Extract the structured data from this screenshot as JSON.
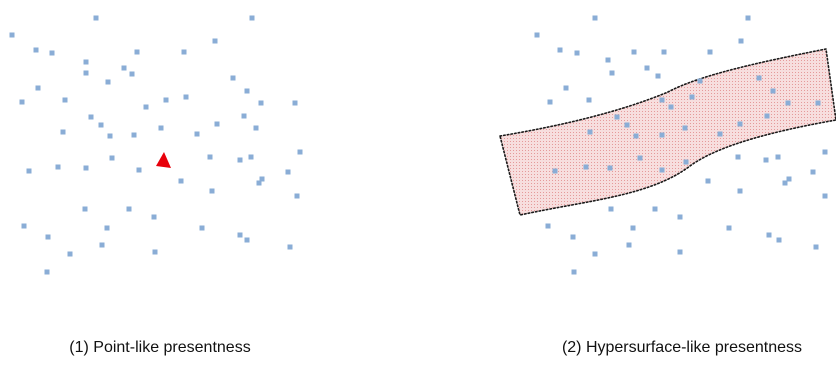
{
  "panels": [
    {
      "caption": "(1) Point-like presentness"
    },
    {
      "caption": "(2) Hypersurface-like presentness"
    }
  ],
  "colors": {
    "event_point": "#8aadd6",
    "present_point_marker": "#e8000b",
    "hypersurface_fill": "#f7dede",
    "hypersurface_dots": "#e59a9a",
    "hypersurface_outline": "#1a1a1a",
    "caption_text": "#111111"
  },
  "icons": {
    "present_marker": "red-triangle",
    "events": "blue-square-dots",
    "hypersurface": "dotted-outline-band"
  }
}
